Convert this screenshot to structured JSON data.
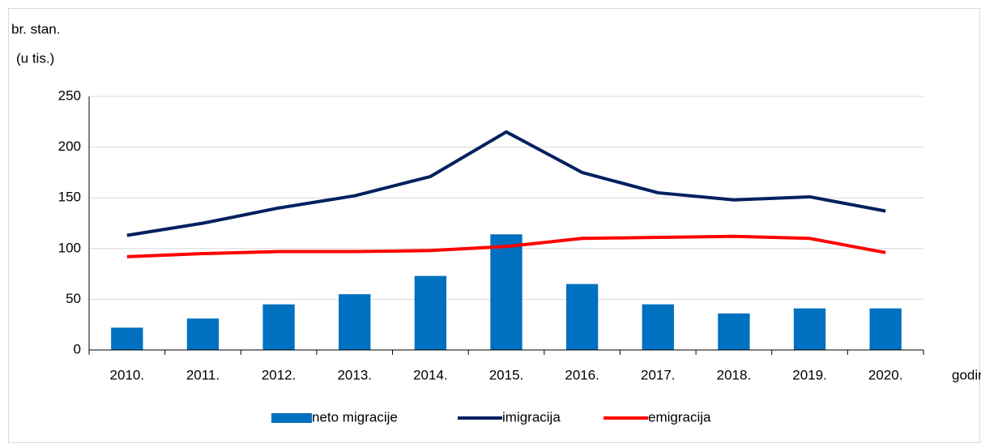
{
  "chart_data": {
    "type": "bar_line",
    "y_label": [
      "br. stan.",
      "(u tis.)"
    ],
    "x_label": "godine",
    "categories": [
      "2010.",
      "2011.",
      "2012.",
      "2013.",
      "2014.",
      "2015.",
      "2016.",
      "2017.",
      "2018.",
      "2019.",
      "2020."
    ],
    "series": [
      {
        "name": "neto migracije",
        "type": "bar",
        "color": "#0070c0",
        "values": [
          22,
          31,
          45,
          55,
          73,
          114,
          65,
          45,
          36,
          41,
          41
        ]
      },
      {
        "name": "imigracija",
        "type": "line",
        "color": "#002060",
        "values": [
          113,
          125,
          140,
          152,
          171,
          215,
          175,
          155,
          148,
          151,
          137
        ]
      },
      {
        "name": "emigracija",
        "type": "line",
        "color": "#ff0000",
        "values": [
          92,
          95,
          97,
          97,
          98,
          102,
          110,
          111,
          112,
          110,
          96
        ]
      }
    ],
    "ylim": [
      0,
      250
    ],
    "yticks": [
      0,
      50,
      100,
      150,
      200,
      250
    ],
    "grid": true,
    "legend": "bottom"
  }
}
